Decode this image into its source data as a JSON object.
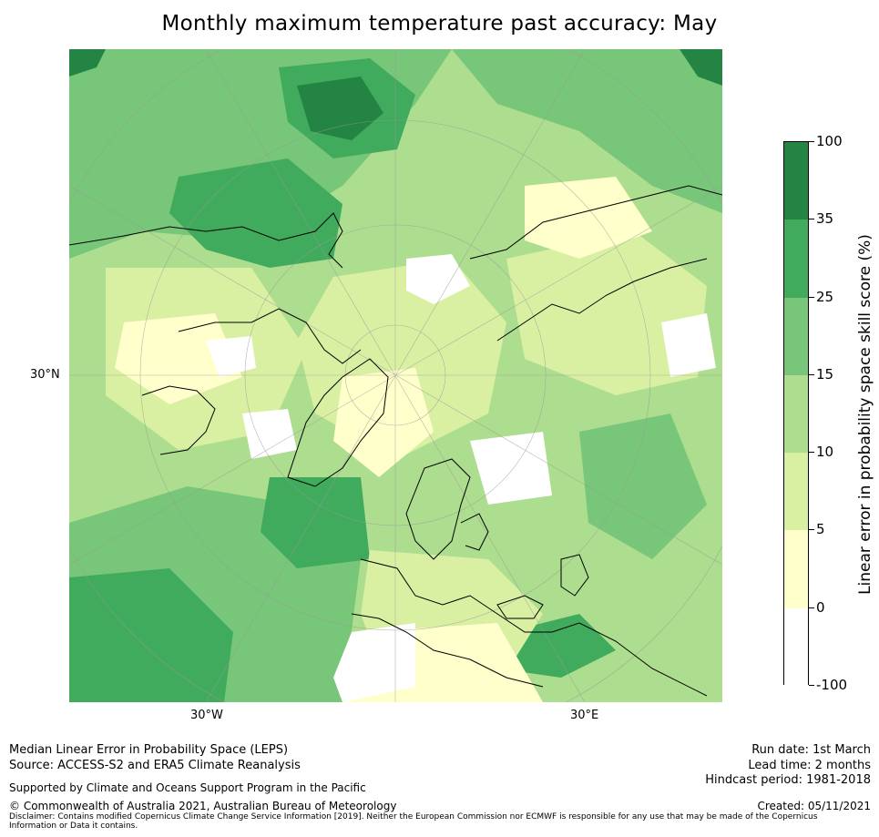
{
  "title": "Monthly maximum temperature past accuracy: May",
  "map": {
    "projection": "north-polar-stereographic",
    "lat_label": "30°N",
    "lon_labels": [
      "30°W",
      "30°E"
    ],
    "colors": {
      "white": "#ffffff",
      "c1": "#ffffcc",
      "c2": "#d9f0a3",
      "c3": "#addd8e",
      "c4": "#78c679",
      "c5": "#41ab5d",
      "c6": "#238443",
      "coast": "#000000"
    }
  },
  "colorbar": {
    "title": "Linear error in probability space skill score (%)",
    "levels": [
      "100",
      "35",
      "25",
      "15",
      "10",
      "5",
      "0",
      "-100"
    ],
    "colors": [
      "#238443",
      "#41ab5d",
      "#78c679",
      "#addd8e",
      "#d9f0a3",
      "#ffffcc",
      "#ffffff"
    ]
  },
  "footer": {
    "line1": "Median Linear Error in Probability Space (LEPS)",
    "line2": "Source: ACCESS-S2 and ERA5 Climate Reanalysis",
    "support": "Supported by Climate and Oceans Support Program in the Pacific",
    "copyright": "© Commonwealth of Australia 2021, Australian Bureau of Meteorology",
    "disclaimer": "Disclaimer: Contains modified Copernicus Climate Change Service Information [2019]. Neither the European Commission nor ECMWF is responsible for any use that may be made of the Copernicus Information or Data it contains.",
    "run_date": "Run date: 1st March",
    "lead_time": "Lead time: 2 months",
    "hindcast": "Hindcast period: 1981-2018",
    "created": "Created: 05/11/2021"
  }
}
